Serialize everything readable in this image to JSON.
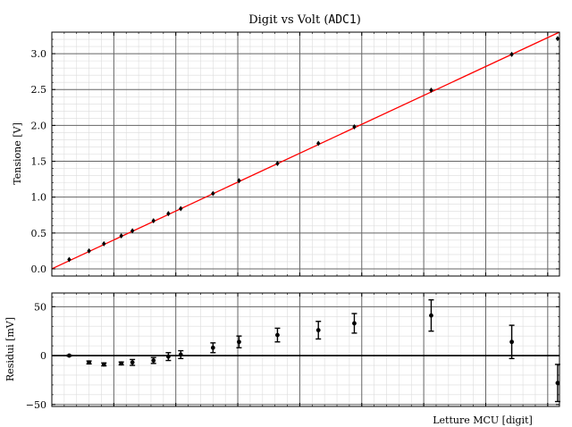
{
  "chart_data": [
    {
      "type": "scatter",
      "title_text": "Digit vs Volt (",
      "title_code": "ADC1",
      "title_end": ")",
      "ylabel": "Tensione [V]",
      "xlim": [
        0,
        4095
      ],
      "ylim": [
        -0.1,
        3.3
      ],
      "y_ticks": [
        0.0,
        0.5,
        1.0,
        1.5,
        2.0,
        2.5,
        3.0
      ],
      "y_tick_labels": [
        "0.0",
        "0.5",
        "1.0",
        "1.5",
        "2.0",
        "2.5",
        "3.0"
      ],
      "x_major_ticks": [
        500,
        1000,
        1500,
        2000,
        2500,
        3000,
        3500,
        4000
      ],
      "grid": true,
      "fit_line": {
        "color": "#ff0000",
        "slope_v_per_digit": 0.000806,
        "intercept_v": 0.0
      },
      "points": {
        "x": [
          140,
          300,
          420,
          560,
          650,
          820,
          940,
          1040,
          1300,
          1510,
          1820,
          2150,
          2440,
          3060,
          3710,
          4080
        ],
        "y": [
          0.13,
          0.25,
          0.35,
          0.46,
          0.53,
          0.67,
          0.77,
          0.84,
          1.05,
          1.23,
          1.47,
          1.75,
          1.98,
          2.49,
          2.99,
          3.21
        ]
      },
      "marker_color": "#000000"
    },
    {
      "type": "scatter",
      "ylabel": "Residui [mV]",
      "xlabel": "Letture MCU [digit]",
      "xlim": [
        0,
        4095
      ],
      "ylim": [
        -52,
        64
      ],
      "y_ticks": [
        -50,
        0,
        50
      ],
      "y_tick_labels": [
        "−50",
        "0",
        "50"
      ],
      "x_major_ticks": [
        500,
        1000,
        1500,
        2000,
        2500,
        3000,
        3500,
        4000
      ],
      "grid": true,
      "zero_line": true,
      "points": {
        "x": [
          140,
          300,
          420,
          560,
          650,
          820,
          940,
          1040,
          1300,
          1510,
          1820,
          2150,
          2440,
          3060,
          3710,
          4080
        ],
        "y": [
          0,
          -7,
          -9,
          -8,
          -7,
          -5,
          -1,
          1,
          8,
          14,
          21,
          26,
          33,
          41,
          14,
          -28
        ],
        "err": [
          0.5,
          1.5,
          1.5,
          1.5,
          3,
          3,
          4,
          4,
          5,
          6,
          7,
          9,
          10,
          16,
          17,
          19
        ]
      },
      "marker_color": "#000000"
    }
  ]
}
